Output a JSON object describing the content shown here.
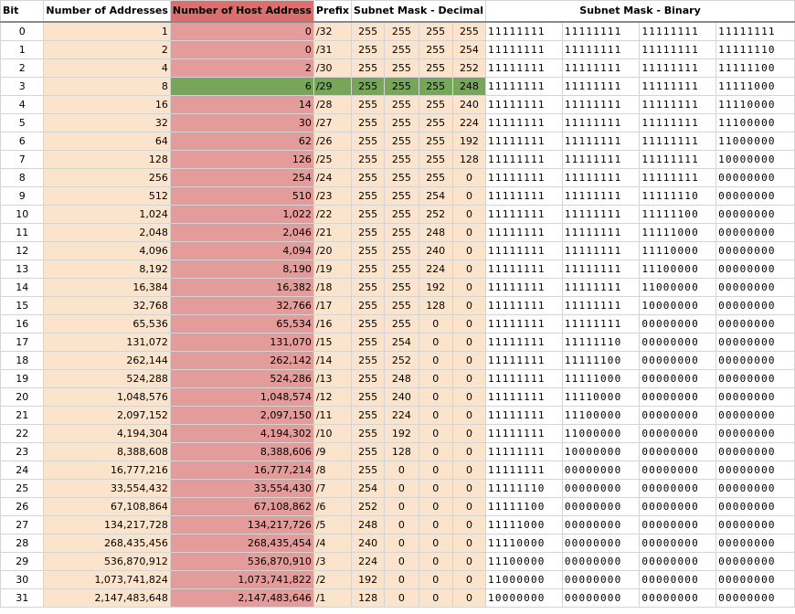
{
  "headers": {
    "bit": "Bit",
    "addresses": "Number of Addresses",
    "hosts": "Number of Host Address",
    "prefix": "Prefix",
    "decimal": "Subnet Mask - Decimal",
    "binary": "Subnet Mask - Binary"
  },
  "highlight_color": "#77a65b",
  "host_header_color": "#d9706d",
  "rows": [
    {
      "bit": "0",
      "addresses": "1",
      "hosts": "0",
      "prefix": "/32",
      "dec": [
        "255",
        "255",
        "255",
        "255"
      ],
      "bin": [
        "11111111",
        "11111111",
        "11111111",
        "11111111"
      ]
    },
    {
      "bit": "1",
      "addresses": "2",
      "hosts": "0",
      "prefix": "/31",
      "dec": [
        "255",
        "255",
        "255",
        "254"
      ],
      "bin": [
        "11111111",
        "11111111",
        "11111111",
        "11111110"
      ]
    },
    {
      "bit": "2",
      "addresses": "4",
      "hosts": "2",
      "prefix": "/30",
      "dec": [
        "255",
        "255",
        "255",
        "252"
      ],
      "bin": [
        "11111111",
        "11111111",
        "11111111",
        "11111100"
      ]
    },
    {
      "bit": "3",
      "addresses": "8",
      "hosts": "6",
      "prefix": "/29",
      "dec": [
        "255",
        "255",
        "255",
        "248"
      ],
      "bin": [
        "11111111",
        "11111111",
        "11111111",
        "11111000"
      ],
      "highlight": true
    },
    {
      "bit": "4",
      "addresses": "16",
      "hosts": "14",
      "prefix": "/28",
      "dec": [
        "255",
        "255",
        "255",
        "240"
      ],
      "bin": [
        "11111111",
        "11111111",
        "11111111",
        "11110000"
      ]
    },
    {
      "bit": "5",
      "addresses": "32",
      "hosts": "30",
      "prefix": "/27",
      "dec": [
        "255",
        "255",
        "255",
        "224"
      ],
      "bin": [
        "11111111",
        "11111111",
        "11111111",
        "11100000"
      ]
    },
    {
      "bit": "6",
      "addresses": "64",
      "hosts": "62",
      "prefix": "/26",
      "dec": [
        "255",
        "255",
        "255",
        "192"
      ],
      "bin": [
        "11111111",
        "11111111",
        "11111111",
        "11000000"
      ]
    },
    {
      "bit": "7",
      "addresses": "128",
      "hosts": "126",
      "prefix": "/25",
      "dec": [
        "255",
        "255",
        "255",
        "128"
      ],
      "bin": [
        "11111111",
        "11111111",
        "11111111",
        "10000000"
      ]
    },
    {
      "bit": "8",
      "addresses": "256",
      "hosts": "254",
      "prefix": "/24",
      "dec": [
        "255",
        "255",
        "255",
        "0"
      ],
      "bin": [
        "11111111",
        "11111111",
        "11111111",
        "00000000"
      ]
    },
    {
      "bit": "9",
      "addresses": "512",
      "hosts": "510",
      "prefix": "/23",
      "dec": [
        "255",
        "255",
        "254",
        "0"
      ],
      "bin": [
        "11111111",
        "11111111",
        "11111110",
        "00000000"
      ]
    },
    {
      "bit": "10",
      "addresses": "1,024",
      "hosts": "1,022",
      "prefix": "/22",
      "dec": [
        "255",
        "255",
        "252",
        "0"
      ],
      "bin": [
        "11111111",
        "11111111",
        "11111100",
        "00000000"
      ]
    },
    {
      "bit": "11",
      "addresses": "2,048",
      "hosts": "2,046",
      "prefix": "/21",
      "dec": [
        "255",
        "255",
        "248",
        "0"
      ],
      "bin": [
        "11111111",
        "11111111",
        "11111000",
        "00000000"
      ]
    },
    {
      "bit": "12",
      "addresses": "4,096",
      "hosts": "4,094",
      "prefix": "/20",
      "dec": [
        "255",
        "255",
        "240",
        "0"
      ],
      "bin": [
        "11111111",
        "11111111",
        "11110000",
        "00000000"
      ]
    },
    {
      "bit": "13",
      "addresses": "8,192",
      "hosts": "8,190",
      "prefix": "/19",
      "dec": [
        "255",
        "255",
        "224",
        "0"
      ],
      "bin": [
        "11111111",
        "11111111",
        "11100000",
        "00000000"
      ]
    },
    {
      "bit": "14",
      "addresses": "16,384",
      "hosts": "16,382",
      "prefix": "/18",
      "dec": [
        "255",
        "255",
        "192",
        "0"
      ],
      "bin": [
        "11111111",
        "11111111",
        "11000000",
        "00000000"
      ]
    },
    {
      "bit": "15",
      "addresses": "32,768",
      "hosts": "32,766",
      "prefix": "/17",
      "dec": [
        "255",
        "255",
        "128",
        "0"
      ],
      "bin": [
        "11111111",
        "11111111",
        "10000000",
        "00000000"
      ]
    },
    {
      "bit": "16",
      "addresses": "65,536",
      "hosts": "65,534",
      "prefix": "/16",
      "dec": [
        "255",
        "255",
        "0",
        "0"
      ],
      "bin": [
        "11111111",
        "11111111",
        "00000000",
        "00000000"
      ]
    },
    {
      "bit": "17",
      "addresses": "131,072",
      "hosts": "131,070",
      "prefix": "/15",
      "dec": [
        "255",
        "254",
        "0",
        "0"
      ],
      "bin": [
        "11111111",
        "11111110",
        "00000000",
        "00000000"
      ]
    },
    {
      "bit": "18",
      "addresses": "262,144",
      "hosts": "262,142",
      "prefix": "/14",
      "dec": [
        "255",
        "252",
        "0",
        "0"
      ],
      "bin": [
        "11111111",
        "11111100",
        "00000000",
        "00000000"
      ]
    },
    {
      "bit": "19",
      "addresses": "524,288",
      "hosts": "524,286",
      "prefix": "/13",
      "dec": [
        "255",
        "248",
        "0",
        "0"
      ],
      "bin": [
        "11111111",
        "11111000",
        "00000000",
        "00000000"
      ]
    },
    {
      "bit": "20",
      "addresses": "1,048,576",
      "hosts": "1,048,574",
      "prefix": "/12",
      "dec": [
        "255",
        "240",
        "0",
        "0"
      ],
      "bin": [
        "11111111",
        "11110000",
        "00000000",
        "00000000"
      ]
    },
    {
      "bit": "21",
      "addresses": "2,097,152",
      "hosts": "2,097,150",
      "prefix": "/11",
      "dec": [
        "255",
        "224",
        "0",
        "0"
      ],
      "bin": [
        "11111111",
        "11100000",
        "00000000",
        "00000000"
      ]
    },
    {
      "bit": "22",
      "addresses": "4,194,304",
      "hosts": "4,194,302",
      "prefix": "/10",
      "dec": [
        "255",
        "192",
        "0",
        "0"
      ],
      "bin": [
        "11111111",
        "11000000",
        "00000000",
        "00000000"
      ]
    },
    {
      "bit": "23",
      "addresses": "8,388,608",
      "hosts": "8,388,606",
      "prefix": "/9",
      "dec": [
        "255",
        "128",
        "0",
        "0"
      ],
      "bin": [
        "11111111",
        "10000000",
        "00000000",
        "00000000"
      ]
    },
    {
      "bit": "24",
      "addresses": "16,777,216",
      "hosts": "16,777,214",
      "prefix": "/8",
      "dec": [
        "255",
        "0",
        "0",
        "0"
      ],
      "bin": [
        "11111111",
        "00000000",
        "00000000",
        "00000000"
      ]
    },
    {
      "bit": "25",
      "addresses": "33,554,432",
      "hosts": "33,554,430",
      "prefix": "/7",
      "dec": [
        "254",
        "0",
        "0",
        "0"
      ],
      "bin": [
        "11111110",
        "00000000",
        "00000000",
        "00000000"
      ]
    },
    {
      "bit": "26",
      "addresses": "67,108,864",
      "hosts": "67,108,862",
      "prefix": "/6",
      "dec": [
        "252",
        "0",
        "0",
        "0"
      ],
      "bin": [
        "11111100",
        "00000000",
        "00000000",
        "00000000"
      ]
    },
    {
      "bit": "27",
      "addresses": "134,217,728",
      "hosts": "134,217,726",
      "prefix": "/5",
      "dec": [
        "248",
        "0",
        "0",
        "0"
      ],
      "bin": [
        "11111000",
        "00000000",
        "00000000",
        "00000000"
      ]
    },
    {
      "bit": "28",
      "addresses": "268,435,456",
      "hosts": "268,435,454",
      "prefix": "/4",
      "dec": [
        "240",
        "0",
        "0",
        "0"
      ],
      "bin": [
        "11110000",
        "00000000",
        "00000000",
        "00000000"
      ]
    },
    {
      "bit": "29",
      "addresses": "536,870,912",
      "hosts": "536,870,910",
      "prefix": "/3",
      "dec": [
        "224",
        "0",
        "0",
        "0"
      ],
      "bin": [
        "11100000",
        "00000000",
        "00000000",
        "00000000"
      ]
    },
    {
      "bit": "30",
      "addresses": "1,073,741,824",
      "hosts": "1,073,741,822",
      "prefix": "/2",
      "dec": [
        "192",
        "0",
        "0",
        "0"
      ],
      "bin": [
        "11000000",
        "00000000",
        "00000000",
        "00000000"
      ]
    },
    {
      "bit": "31",
      "addresses": "2,147,483,648",
      "hosts": "2,147,483,646",
      "prefix": "/1",
      "dec": [
        "128",
        "0",
        "0",
        "0"
      ],
      "bin": [
        "10000000",
        "00000000",
        "00000000",
        "00000000"
      ]
    }
  ]
}
